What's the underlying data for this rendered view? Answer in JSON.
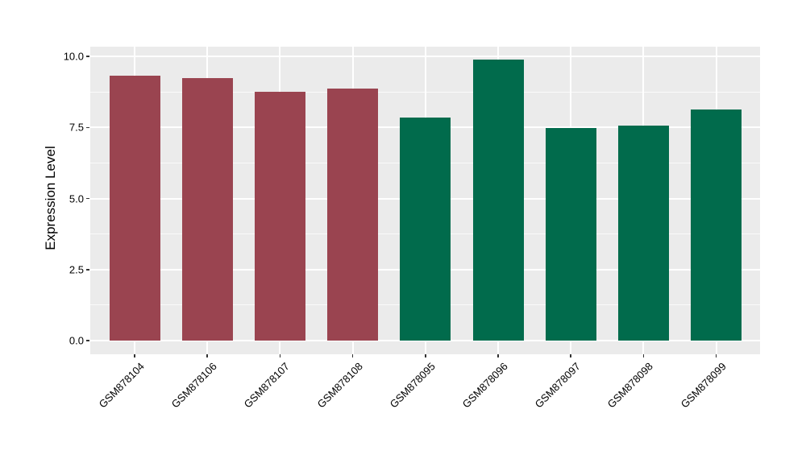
{
  "chart_data": {
    "type": "bar",
    "title": "",
    "xlabel": "",
    "ylabel": "Expression Level",
    "categories": [
      "GSM878104",
      "GSM878106",
      "GSM878107",
      "GSM878108",
      "GSM878095",
      "GSM878096",
      "GSM878097",
      "GSM878098",
      "GSM878099"
    ],
    "values": [
      9.33,
      9.24,
      8.75,
      8.87,
      7.85,
      9.89,
      7.49,
      7.57,
      8.13
    ],
    "bar_colors": [
      "#9a4450",
      "#9a4450",
      "#9a4450",
      "#9a4450",
      "#016b4c",
      "#016b4c",
      "#016b4c",
      "#016b4c",
      "#016b4c"
    ],
    "group_colors": {
      "maroon_group": "#9a4450",
      "green_group": "#016b4c"
    },
    "ylim": [
      0,
      10.5
    ],
    "yticks": [
      0.0,
      2.5,
      5.0,
      7.5,
      10.0
    ],
    "ytick_labels": [
      "0.0",
      "2.5",
      "5.0",
      "7.5",
      "10.0"
    ],
    "yticks_minor": [
      1.25,
      3.75,
      6.25,
      8.75
    ],
    "grid": "major-and-minor-horizontal, major-vertical-at-categories",
    "legend": "none",
    "panel_background": "#ebebeb",
    "grid_color": "#ffffff",
    "tick_color": "#333333",
    "text_color": "#000000",
    "x_label_rotation_deg": 45
  }
}
